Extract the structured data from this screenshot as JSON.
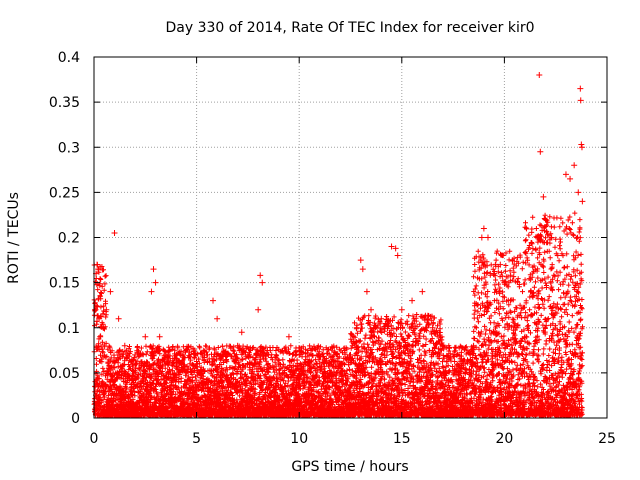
{
  "chart_data": {
    "type": "scatter",
    "title": "Day 330 of 2014, Rate Of TEC Index for receiver kir0",
    "xlabel": "GPS time / hours",
    "ylabel": "ROTI / TECUs",
    "xlim": [
      0,
      25
    ],
    "ylim": [
      0,
      0.4
    ],
    "x_ticks": [
      0,
      5,
      10,
      15,
      20,
      25
    ],
    "x_tick_labels": [
      "0",
      "5",
      "10",
      "15",
      "20",
      "25"
    ],
    "y_ticks": [
      0,
      0.05,
      0.1,
      0.15,
      0.2,
      0.25,
      0.3,
      0.35,
      0.4
    ],
    "y_tick_labels": [
      "0",
      "0.05",
      "0.1",
      "0.15",
      "0.2",
      "0.25",
      "0.3",
      "0.35",
      "0.4"
    ],
    "grid": true,
    "marker": "+",
    "marker_color": "#ff0000",
    "series": [
      {
        "name": "ROTI",
        "points": [
          [
            0.05,
            0.12
          ],
          [
            0.1,
            0.16
          ],
          [
            0.15,
            0.17
          ],
          [
            0.2,
            0.165
          ],
          [
            0.25,
            0.11
          ],
          [
            0.3,
            0.09
          ],
          [
            0.45,
            0.1
          ],
          [
            0.6,
            0.12
          ],
          [
            0.8,
            0.14
          ],
          [
            1.0,
            0.205
          ],
          [
            1.2,
            0.11
          ],
          [
            1.5,
            0.08
          ],
          [
            2.0,
            0.07
          ],
          [
            2.5,
            0.09
          ],
          [
            2.8,
            0.14
          ],
          [
            2.9,
            0.165
          ],
          [
            3.0,
            0.15
          ],
          [
            3.2,
            0.09
          ],
          [
            3.5,
            0.07
          ],
          [
            4.0,
            0.06
          ],
          [
            4.5,
            0.05
          ],
          [
            5.0,
            0.06
          ],
          [
            5.5,
            0.07
          ],
          [
            5.8,
            0.13
          ],
          [
            6.0,
            0.11
          ],
          [
            6.5,
            0.07
          ],
          [
            7.0,
            0.08
          ],
          [
            7.2,
            0.095
          ],
          [
            7.5,
            0.07
          ],
          [
            8.0,
            0.12
          ],
          [
            8.1,
            0.158
          ],
          [
            8.2,
            0.15
          ],
          [
            8.5,
            0.07
          ],
          [
            9.0,
            0.06
          ],
          [
            9.5,
            0.09
          ],
          [
            10.0,
            0.07
          ],
          [
            10.5,
            0.06
          ],
          [
            11.0,
            0.06
          ],
          [
            11.5,
            0.05
          ],
          [
            12.0,
            0.06
          ],
          [
            12.5,
            0.07
          ],
          [
            12.8,
            0.1
          ],
          [
            13.0,
            0.175
          ],
          [
            13.1,
            0.165
          ],
          [
            13.3,
            0.14
          ],
          [
            13.5,
            0.12
          ],
          [
            14.0,
            0.11
          ],
          [
            14.5,
            0.19
          ],
          [
            14.7,
            0.188
          ],
          [
            14.8,
            0.18
          ],
          [
            15.0,
            0.12
          ],
          [
            15.5,
            0.13
          ],
          [
            16.0,
            0.14
          ],
          [
            16.5,
            0.1
          ],
          [
            17.0,
            0.08
          ],
          [
            17.5,
            0.07
          ],
          [
            18.0,
            0.06
          ],
          [
            18.5,
            0.08
          ],
          [
            18.9,
            0.2
          ],
          [
            19.0,
            0.21
          ],
          [
            19.2,
            0.2
          ],
          [
            19.5,
            0.16
          ],
          [
            19.8,
            0.17
          ],
          [
            20.0,
            0.15
          ],
          [
            20.3,
            0.13
          ],
          [
            20.6,
            0.1
          ],
          [
            21.0,
            0.09
          ],
          [
            21.3,
            0.14
          ],
          [
            21.6,
            0.2
          ],
          [
            21.7,
            0.38
          ],
          [
            21.75,
            0.295
          ],
          [
            21.9,
            0.245
          ],
          [
            22.0,
            0.22
          ],
          [
            22.3,
            0.2
          ],
          [
            22.6,
            0.18
          ],
          [
            23.0,
            0.27
          ],
          [
            23.2,
            0.265
          ],
          [
            23.4,
            0.28
          ],
          [
            23.6,
            0.25
          ],
          [
            23.7,
            0.365
          ],
          [
            23.72,
            0.352
          ],
          [
            23.75,
            0.303
          ],
          [
            23.78,
            0.3
          ],
          [
            23.8,
            0.24
          ]
        ]
      }
    ]
  }
}
